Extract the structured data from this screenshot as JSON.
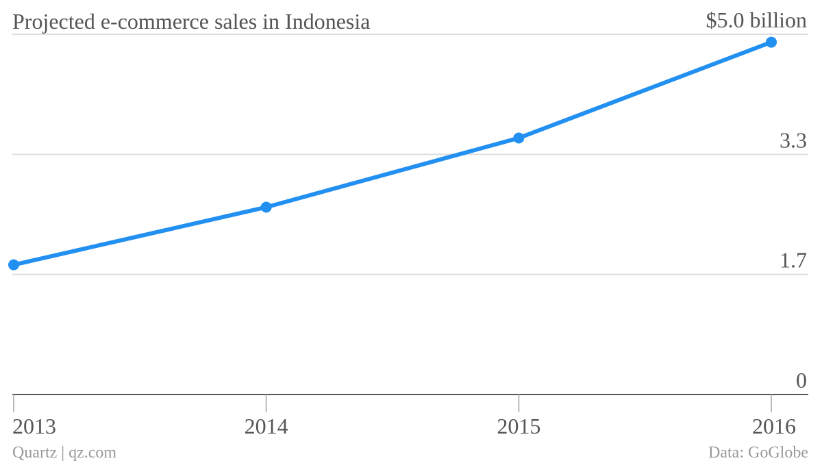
{
  "chart_data": {
    "type": "line",
    "title": "Projected e-commerce sales in Indonesia",
    "x": [
      2013,
      2014,
      2015,
      2016
    ],
    "series": [
      {
        "color": "#2190f0",
        "values": [
          1.8,
          2.6,
          3.56,
          4.89
        ]
      }
    ],
    "xlim": [
      2013,
      2016
    ],
    "xticks": [
      2013,
      2014,
      2015,
      2016
    ],
    "ylim": [
      0,
      5
    ],
    "yticks": [
      0,
      {
        "value": 1.667,
        "label": "1.7"
      },
      {
        "value": 3.333,
        "label": "3.3"
      },
      {
        "value": 5,
        "label": "$5.0 billion"
      }
    ],
    "grid": true,
    "source": "Quartz | qz.com",
    "note": "Data: GoGlobe"
  }
}
